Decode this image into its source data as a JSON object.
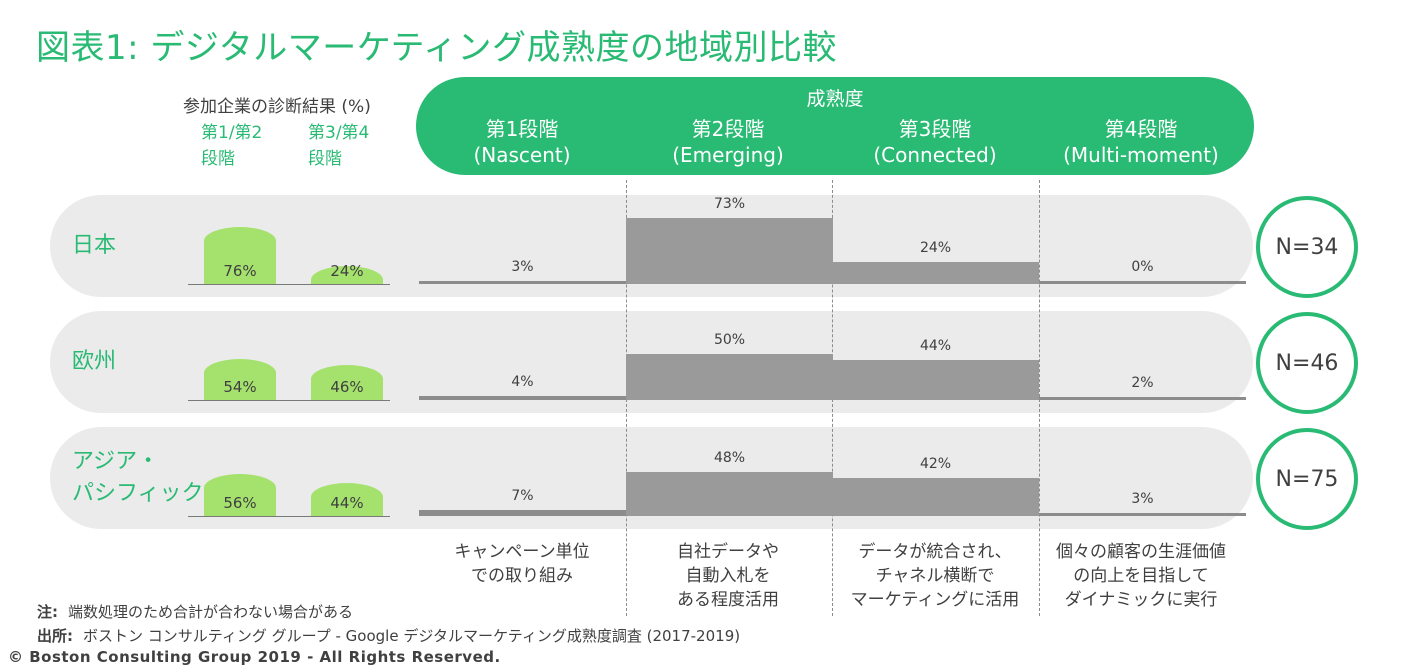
{
  "title": "図表1:  デジタルマーケティング成熟度の地域別比較",
  "self_assessment_header": "参加企業の診断結果 (%)",
  "self_assessment_labels": [
    [
      "第1/第2",
      "段階"
    ],
    [
      "第3/第4",
      "段階"
    ]
  ],
  "maturity_title": "成熟度",
  "stages": [
    {
      "name": "第1段階",
      "en": "(Nascent)",
      "desc": [
        "キャンペーン単位",
        "での取り組み"
      ]
    },
    {
      "name": "第2段階",
      "en": "(Emerging)",
      "desc": [
        "自社データや",
        "自動入札を",
        "ある程度活用"
      ]
    },
    {
      "name": "第3段階",
      "en": "(Connected)",
      "desc": [
        "データが統合され、",
        "チャネル横断で",
        "マーケティングに活用"
      ]
    },
    {
      "name": "第4段階",
      "en": "(Multi-moment)",
      "desc": [
        "個々の顧客の生涯価値",
        "の向上を目指して",
        "ダイナミックに実行"
      ]
    }
  ],
  "chart_data": {
    "type": "bar",
    "categories": [
      "第1段階 (Nascent)",
      "第2段階 (Emerging)",
      "第3段階 (Connected)",
      "第4段階 (Multi-moment)"
    ],
    "unit": "%",
    "ylim": [
      0,
      100
    ],
    "series": [
      {
        "name": "日本",
        "values": [
          3,
          73,
          24,
          0
        ],
        "stage12": 76,
        "stage34": 24,
        "n": "N=34"
      },
      {
        "name": "欧州",
        "values": [
          4,
          50,
          44,
          2
        ],
        "stage12": 54,
        "stage34": 46,
        "n": "N=46"
      },
      {
        "name": "アジア・パシフィック",
        "values": [
          7,
          48,
          42,
          3
        ],
        "stage12": 56,
        "stage34": 44,
        "n": "N=75"
      }
    ]
  },
  "region_display": [
    [
      "日本"
    ],
    [
      "欧州"
    ],
    [
      "アジア・",
      "パシフィック"
    ]
  ],
  "footer": {
    "note_label": "注:",
    "note_text": "端数処理のため合計が合わない場合がある",
    "source_label": "出所:",
    "source_text": "ボストン コンサルティング グループ - Google デジタルマーケティング成熟度調査 (2017-2019)",
    "copyright": "© Boston Consulting Group 2019 - All Rights Reserved."
  },
  "colors": {
    "accent": "#29ba74",
    "light_green": "#a4e26d",
    "bar_gray": "#9a9a9a",
    "row_bg": "#ebebeb"
  }
}
